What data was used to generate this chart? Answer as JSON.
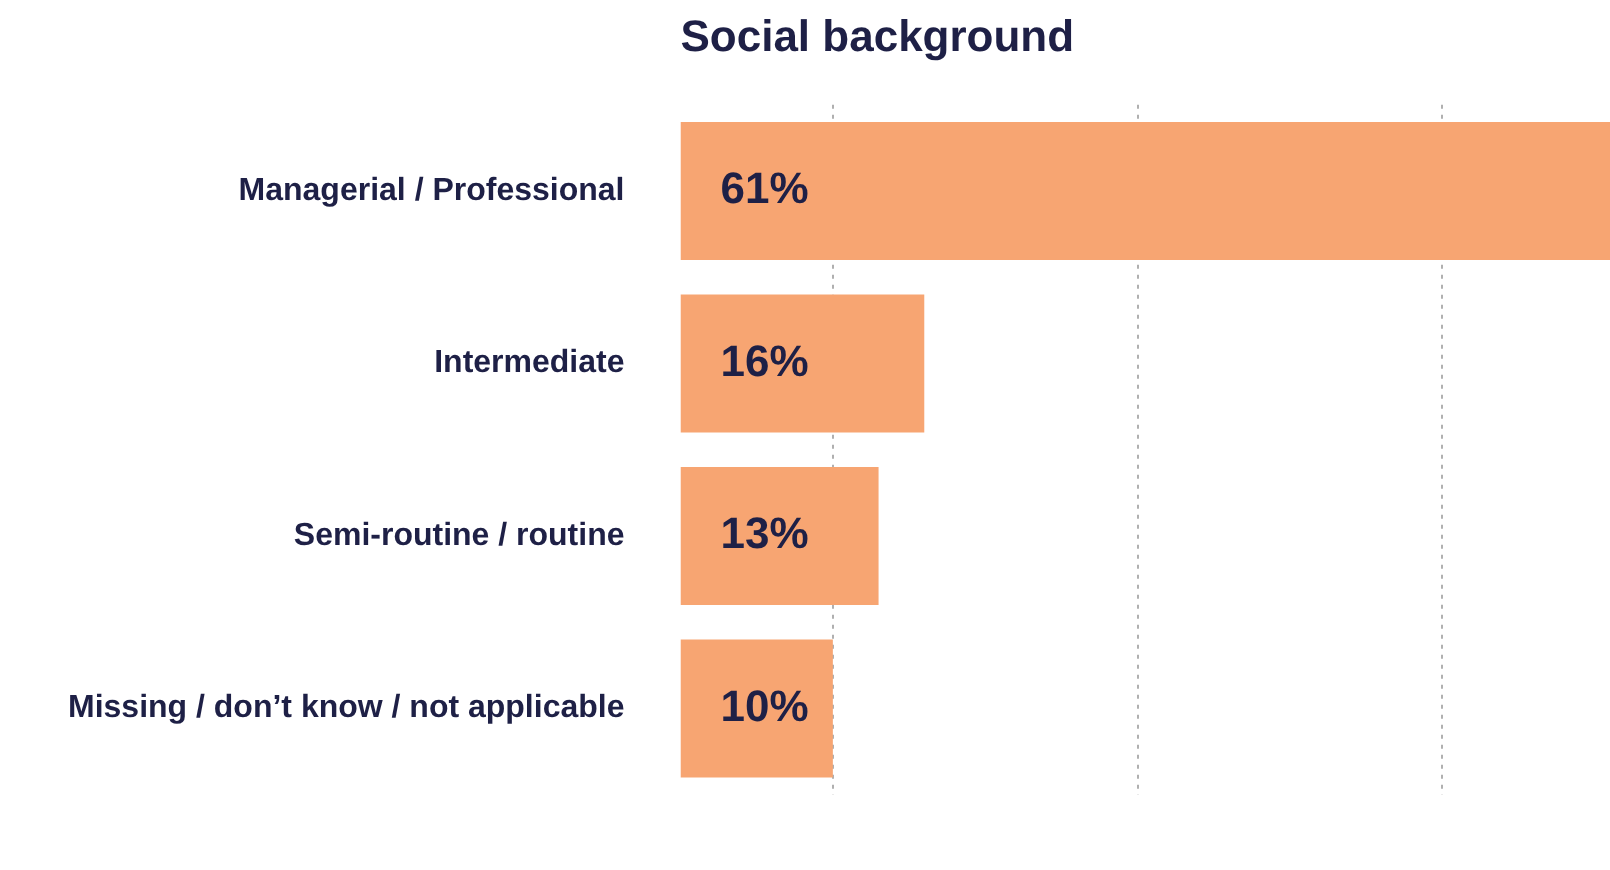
{
  "chart_data": {
    "type": "bar",
    "orientation": "horizontal",
    "title": "Social background",
    "categories": [
      "Managerial / Professional",
      "Intermediate",
      "Semi-routine / routine",
      "Missing / don’t know / not applicable"
    ],
    "values": [
      61,
      16,
      13,
      10
    ],
    "color": "#f7a572",
    "data_labels": true,
    "value_labels": [
      "61%",
      "16%",
      "13%",
      "10%"
    ],
    "xlim": [
      0,
      61
    ],
    "xticks": [
      {
        "value": 10,
        "label": null
      },
      {
        "value": 30,
        "label": null
      },
      {
        "value": 50,
        "label": null
      }
    ],
    "grid": "x",
    "tick_labels": "y",
    "legend": false
  }
}
